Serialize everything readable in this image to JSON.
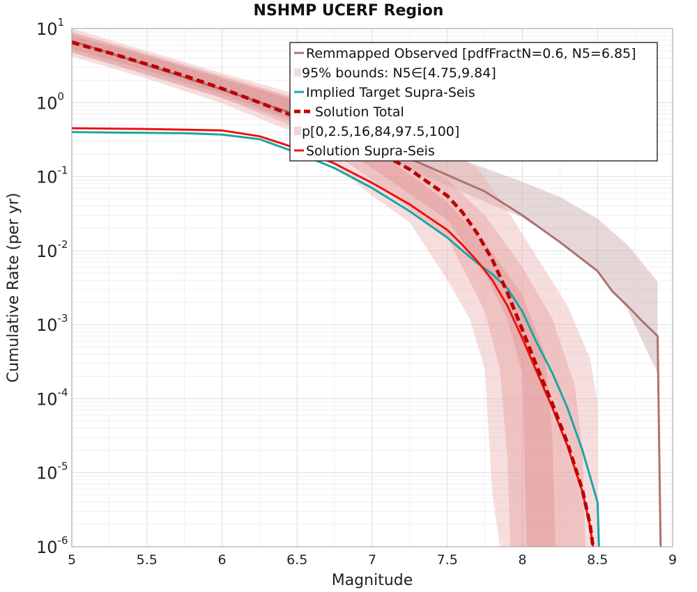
{
  "chart_data": {
    "type": "line",
    "title": "NSHMP UCERF Region",
    "xlabel": "Magnitude",
    "ylabel": "Cumulative Rate (per yr)",
    "xlim": [
      5,
      9
    ],
    "ylim_log10": [
      -6,
      1
    ],
    "y_scale": "log",
    "grid": true,
    "legend_position": "top-right",
    "x_ticks": [
      "5",
      "5.5",
      "6",
      "6.5",
      "7",
      "7.5",
      "8",
      "8.5",
      "9"
    ],
    "x_tick_values": [
      5,
      5.5,
      6,
      6.5,
      7,
      7.5,
      8,
      8.5,
      9
    ],
    "y_ticks": [
      {
        "exp": 1,
        "base": "10",
        "sup": "1"
      },
      {
        "exp": 0,
        "base": "10",
        "sup": "0"
      },
      {
        "exp": -1,
        "base": "10",
        "sup": "-1"
      },
      {
        "exp": -2,
        "base": "10",
        "sup": "-2"
      },
      {
        "exp": -3,
        "base": "10",
        "sup": "-3"
      },
      {
        "exp": -4,
        "base": "10",
        "sup": "-4"
      },
      {
        "exp": -5,
        "base": "10",
        "sup": "-5"
      },
      {
        "exp": -6,
        "base": "10",
        "sup": "-6"
      }
    ],
    "legend": [
      {
        "label": "Remmapped Observed [pdfFractN=0.6, N5=6.85]",
        "kind": "line",
        "color": "#b07070",
        "dashed": false
      },
      {
        "label": "95% bounds: N5∈[4.75,9.84]",
        "kind": "band",
        "color": "#e8d6d6",
        "dashed": false
      },
      {
        "label": "Implied Target Supra-Seis",
        "kind": "line",
        "color": "#1aa5a5",
        "dashed": false
      },
      {
        "label": "Solution Total",
        "kind": "line",
        "color": "#c00000",
        "dashed": true
      },
      {
        "label": "p[0,2.5,16,84,97.5,100]",
        "kind": "band",
        "color": "#f0c8c8",
        "dashed": false
      },
      {
        "label": "Solution Supra-Seis",
        "kind": "line",
        "color": "#ee1111",
        "dashed": false
      }
    ],
    "bands": [
      {
        "name": "Observed 95% bounds",
        "color": "#c8a8a8",
        "opacity": 0.45,
        "upper": [
          [
            5.0,
            8.8
          ],
          [
            5.5,
            4.4
          ],
          [
            6.0,
            2.2
          ],
          [
            6.5,
            1.1
          ],
          [
            7.0,
            0.48
          ],
          [
            7.5,
            0.2
          ],
          [
            8.0,
            0.085
          ],
          [
            8.25,
            0.053
          ],
          [
            8.5,
            0.027
          ],
          [
            8.7,
            0.012
          ],
          [
            8.9,
            0.0038
          ]
        ],
        "lower": [
          [
            5.0,
            4.75
          ],
          [
            5.5,
            2.35
          ],
          [
            6.0,
            1.15
          ],
          [
            6.5,
            0.52
          ],
          [
            7.0,
            0.21
          ],
          [
            7.5,
            0.075
          ],
          [
            8.0,
            0.028
          ],
          [
            8.25,
            0.013
          ],
          [
            8.5,
            0.0052
          ],
          [
            8.7,
            0.0016
          ],
          [
            8.9,
            0.00022
          ]
        ]
      },
      {
        "name": "Solution p0-p100",
        "color": "#eaa8a8",
        "opacity": 0.38,
        "upper": [
          [
            5.0,
            10
          ],
          [
            5.5,
            5.0
          ],
          [
            6.0,
            2.5
          ],
          [
            6.5,
            1.3
          ],
          [
            7.0,
            0.55
          ],
          [
            7.5,
            0.23
          ],
          [
            7.7,
            0.13
          ],
          [
            7.9,
            0.035
          ],
          [
            8.1,
            0.008
          ],
          [
            8.3,
            0.0018
          ],
          [
            8.45,
            0.00035
          ],
          [
            8.5,
            9e-05
          ],
          [
            8.5,
            1e-06
          ]
        ],
        "lower": [
          [
            5.0,
            4.2
          ],
          [
            5.5,
            2.1
          ],
          [
            6.0,
            0.98
          ],
          [
            6.5,
            0.38
          ],
          [
            7.0,
            0.055
          ],
          [
            7.25,
            0.024
          ],
          [
            7.5,
            0.004
          ],
          [
            7.65,
            0.0012
          ],
          [
            7.75,
            0.00025
          ],
          [
            7.8,
            5e-06
          ],
          [
            7.85,
            1e-06
          ]
        ]
      },
      {
        "name": "Solution p2.5-p97.5",
        "color": "#e59898",
        "opacity": 0.38,
        "upper": [
          [
            5.0,
            9
          ],
          [
            5.5,
            4.6
          ],
          [
            6.0,
            2.3
          ],
          [
            6.5,
            1.15
          ],
          [
            7.0,
            0.4
          ],
          [
            7.5,
            0.09
          ],
          [
            7.75,
            0.03
          ],
          [
            8.0,
            0.006
          ],
          [
            8.2,
            0.0012
          ],
          [
            8.35,
            0.00015
          ],
          [
            8.4,
            2e-05
          ],
          [
            8.42,
            1e-06
          ]
        ],
        "lower": [
          [
            5.0,
            4.8
          ],
          [
            5.5,
            2.4
          ],
          [
            6.0,
            1.15
          ],
          [
            6.5,
            0.45
          ],
          [
            7.0,
            0.09
          ],
          [
            7.5,
            0.015
          ],
          [
            7.75,
            0.0015
          ],
          [
            7.85,
            0.00025
          ],
          [
            7.9,
            1.5e-05
          ],
          [
            7.92,
            1e-06
          ]
        ]
      },
      {
        "name": "Solution p16-p84",
        "color": "#dd8888",
        "opacity": 0.38,
        "upper": [
          [
            5.0,
            8
          ],
          [
            5.5,
            4.3
          ],
          [
            6.0,
            2.1
          ],
          [
            6.5,
            1.05
          ],
          [
            7.0,
            0.25
          ],
          [
            7.5,
            0.045
          ],
          [
            7.75,
            0.013
          ],
          [
            8.0,
            0.0025
          ],
          [
            8.15,
            0.0004
          ],
          [
            8.2,
            3e-05
          ],
          [
            8.22,
            1e-06
          ]
        ],
        "lower": [
          [
            5.0,
            5.3
          ],
          [
            5.5,
            2.7
          ],
          [
            6.0,
            1.3
          ],
          [
            6.5,
            0.55
          ],
          [
            7.0,
            0.13
          ],
          [
            7.5,
            0.026
          ],
          [
            7.75,
            0.005
          ],
          [
            7.9,
            0.0012
          ],
          [
            8.0,
            0.00022
          ],
          [
            8.02,
            5e-06
          ],
          [
            8.03,
            1e-06
          ]
        ]
      }
    ],
    "series": [
      {
        "name": "Remmapped Observed [pdfFractN=0.6, N5=6.85]",
        "color": "#b07070",
        "width": 3,
        "dashed": false,
        "points": [
          [
            5.0,
            6.85
          ],
          [
            5.5,
            3.2
          ],
          [
            6.0,
            1.5
          ],
          [
            6.5,
            0.68
          ],
          [
            7.0,
            0.29
          ],
          [
            7.5,
            0.105
          ],
          [
            7.75,
            0.063
          ],
          [
            8.0,
            0.03
          ],
          [
            8.25,
            0.013
          ],
          [
            8.5,
            0.0053
          ],
          [
            8.6,
            0.0028
          ],
          [
            8.7,
            0.0018
          ],
          [
            8.8,
            0.0011
          ],
          [
            8.9,
            0.0007
          ],
          [
            8.92,
            1e-06
          ]
        ]
      },
      {
        "name": "Implied Target Supra-Seis",
        "color": "#1aa5a5",
        "width": 3,
        "dashed": false,
        "points": [
          [
            5.0,
            0.4
          ],
          [
            5.25,
            0.395
          ],
          [
            5.5,
            0.39
          ],
          [
            5.75,
            0.385
          ],
          [
            6.0,
            0.37
          ],
          [
            6.25,
            0.32
          ],
          [
            6.5,
            0.21
          ],
          [
            6.75,
            0.13
          ],
          [
            7.0,
            0.07
          ],
          [
            7.25,
            0.034
          ],
          [
            7.5,
            0.015
          ],
          [
            7.6,
            0.01
          ],
          [
            7.7,
            0.0068
          ],
          [
            7.8,
            0.0048
          ],
          [
            7.9,
            0.0031
          ],
          [
            8.0,
            0.0015
          ],
          [
            8.05,
            0.0009
          ],
          [
            8.1,
            0.00055
          ],
          [
            8.2,
            0.00022
          ],
          [
            8.3,
            7.5e-05
          ],
          [
            8.4,
            2e-05
          ],
          [
            8.5,
            4e-06
          ],
          [
            8.51,
            1e-06
          ]
        ]
      },
      {
        "name": "Solution Supra-Seis",
        "color": "#ee1111",
        "width": 3,
        "dashed": false,
        "points": [
          [
            5.0,
            0.45
          ],
          [
            5.5,
            0.44
          ],
          [
            6.0,
            0.42
          ],
          [
            6.25,
            0.35
          ],
          [
            6.5,
            0.24
          ],
          [
            6.75,
            0.15
          ],
          [
            7.0,
            0.082
          ],
          [
            7.25,
            0.042
          ],
          [
            7.5,
            0.019
          ],
          [
            7.6,
            0.012
          ],
          [
            7.7,
            0.0072
          ],
          [
            7.8,
            0.004
          ],
          [
            7.9,
            0.0018
          ],
          [
            8.0,
            0.00065
          ],
          [
            8.1,
            0.00022
          ],
          [
            8.2,
            7.5e-05
          ],
          [
            8.3,
            2.3e-05
          ],
          [
            8.4,
            5.5e-06
          ],
          [
            8.45,
            1.9e-06
          ],
          [
            8.47,
            1e-06
          ]
        ]
      },
      {
        "name": "Solution Total",
        "color": "#bb0000",
        "width": 5,
        "dashed": true,
        "points": [
          [
            5.0,
            6.5
          ],
          [
            5.25,
            4.7
          ],
          [
            5.5,
            3.3
          ],
          [
            5.75,
            2.3
          ],
          [
            6.0,
            1.55
          ],
          [
            6.25,
            1.0
          ],
          [
            6.5,
            0.63
          ],
          [
            6.75,
            0.4
          ],
          [
            7.0,
            0.24
          ],
          [
            7.25,
            0.125
          ],
          [
            7.5,
            0.055
          ],
          [
            7.6,
            0.033
          ],
          [
            7.7,
            0.017
          ],
          [
            7.8,
            0.0075
          ],
          [
            7.9,
            0.0027
          ],
          [
            8.0,
            0.00085
          ],
          [
            8.1,
            0.00026
          ],
          [
            8.2,
            8.5e-05
          ],
          [
            8.3,
            2.5e-05
          ],
          [
            8.4,
            5.8e-06
          ],
          [
            8.45,
            2e-06
          ],
          [
            8.47,
            1e-06
          ]
        ]
      }
    ]
  }
}
